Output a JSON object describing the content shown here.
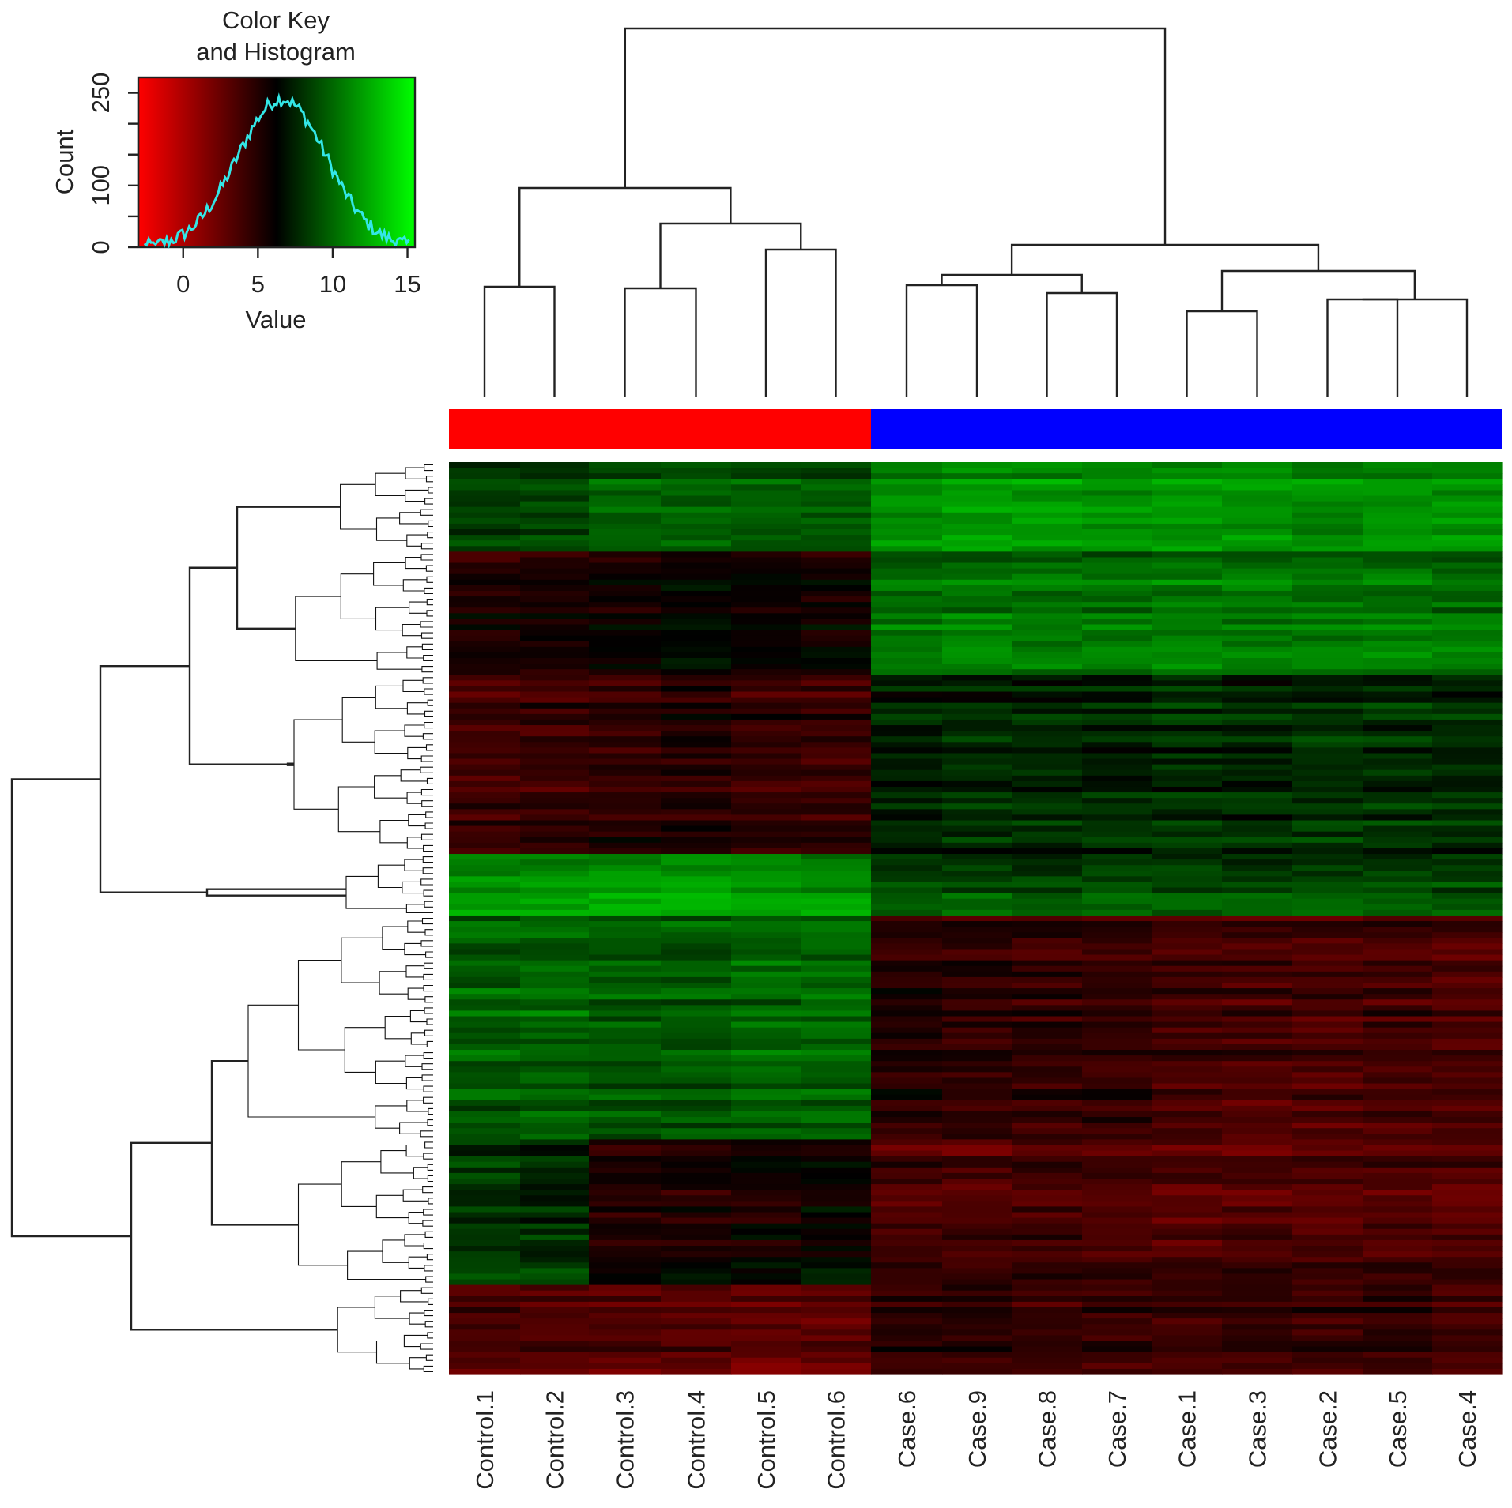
{
  "chart_data": {
    "type": "heatmap",
    "color_key": {
      "title_line1": "Color Key",
      "title_line2": "and Histogram",
      "xlabel": "Value",
      "ylabel": "Count",
      "x_ticks": [
        "0",
        "5",
        "10",
        "15"
      ],
      "x_tick_values": [
        0,
        5,
        10,
        15
      ],
      "y_ticks": [
        "0",
        "100",
        "250"
      ],
      "y_tick_values": [
        0,
        100,
        250
      ],
      "x_range": [
        -3,
        15.5
      ],
      "y_range": [
        0,
        275
      ],
      "colors": {
        "low": "#ff0000",
        "mid": "#000000",
        "high": "#00ff00"
      },
      "histogram_color": "#33e6e6"
    },
    "columns": [
      "Control.1",
      "Control.2",
      "Control.3",
      "Control.4",
      "Control.5",
      "Control.6",
      "Case.6",
      "Case.9",
      "Case.8",
      "Case.7",
      "Case.1",
      "Case.3",
      "Case.2",
      "Case.5",
      "Case.4"
    ],
    "groups": [
      {
        "name": "Control",
        "color": "#ff0000",
        "count": 6
      },
      {
        "name": "Case",
        "color": "#0000ff",
        "count": 9
      }
    ],
    "row_blocks": [
      {
        "rows": 16,
        "control": [
          8.5,
          8.7,
          9.5,
          9.6,
          9.2,
          9.3
        ],
        "case": [
          11.3,
          11.6,
          11.4,
          11.3,
          11.5,
          11.6,
          11.2,
          11.3,
          11.4
        ]
      },
      {
        "rows": 22,
        "control": [
          5.2,
          5.4,
          5.9,
          6.3,
          5.8,
          5.6
        ],
        "case": [
          10.3,
          10.4,
          10.3,
          10.2,
          10.5,
          10.4,
          10.3,
          10.4,
          10.3
        ]
      },
      {
        "rows": 32,
        "control": [
          4.2,
          4.4,
          4.9,
          5.2,
          4.6,
          4.5
        ],
        "case": [
          7.6,
          7.7,
          7.8,
          7.7,
          7.9,
          7.8,
          8.0,
          7.9,
          7.8
        ]
      },
      {
        "rows": 11,
        "control": [
          11.9,
          11.7,
          12.2,
          12.0,
          11.8,
          11.6
        ],
        "case": [
          9.1,
          9.2,
          9.0,
          9.2,
          9.1,
          9.0,
          9.2,
          9.1,
          9.0
        ]
      },
      {
        "rows": 40,
        "control": [
          9.6,
          9.8,
          9.4,
          9.5,
          9.9,
          10.0
        ],
        "case": [
          5.0,
          4.7,
          4.6,
          4.5,
          3.9,
          3.8,
          3.7,
          3.9,
          3.6
        ]
      },
      {
        "rows": 26,
        "control": [
          8.0,
          7.8,
          5.0,
          5.4,
          5.6,
          6.0
        ],
        "case": [
          3.7,
          3.5,
          3.9,
          3.6,
          3.3,
          3.4,
          3.4,
          3.5,
          3.2
        ]
      },
      {
        "rows": 16,
        "control": [
          3.6,
          3.4,
          3.3,
          3.2,
          3.0,
          3.1
        ],
        "case": [
          4.6,
          4.8,
          4.4,
          4.5,
          4.2,
          4.4,
          4.3,
          4.5,
          4.1
        ]
      }
    ]
  }
}
